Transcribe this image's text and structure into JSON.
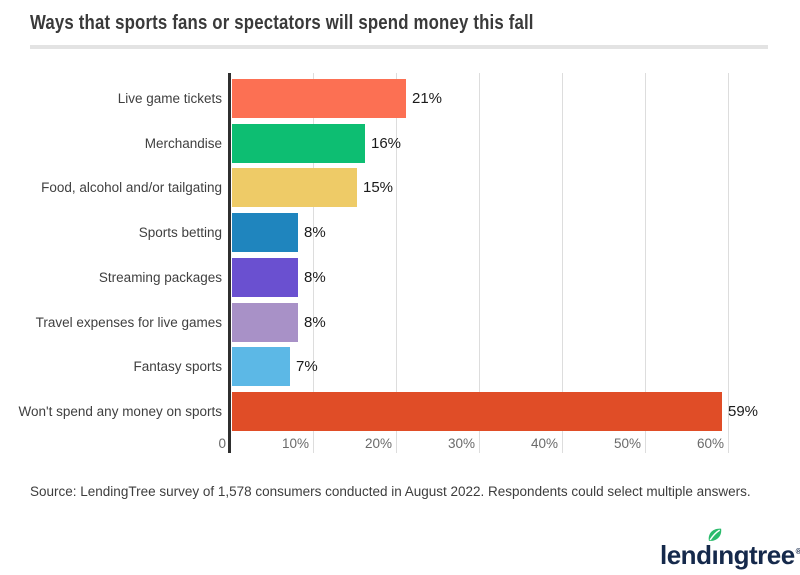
{
  "header": {
    "title": "Ways that sports fans or spectators will spend money this fall"
  },
  "chart_data": {
    "type": "bar",
    "orientation": "horizontal",
    "title": "Ways that sports fans or spectators will spend money this fall",
    "categories": [
      "Live game tickets",
      "Merchandise",
      "Food, alcohol and/or tailgating",
      "Sports betting",
      "Streaming packages",
      "Travel expenses for live games",
      "Fantasy sports",
      "Won't spend any money on sports"
    ],
    "values": [
      21,
      16,
      15,
      8,
      8,
      8,
      7,
      59
    ],
    "value_labels": [
      "21%",
      "16%",
      "15%",
      "8%",
      "8%",
      "8%",
      "7%",
      "59%"
    ],
    "bar_colors": [
      "#FC7053",
      "#0DBE72",
      "#EECB67",
      "#1F85BE",
      "#6A50D0",
      "#A891C7",
      "#5CB8E6",
      "#E04D27"
    ],
    "xlabel": "",
    "ylabel": "",
    "xlim": [
      0,
      60
    ],
    "grid": true,
    "legend_position": "none",
    "x_axis": {
      "ticks": [
        {
          "value": 0,
          "label": "0"
        },
        {
          "value": 10,
          "label": "10%"
        },
        {
          "value": 20,
          "label": "20%"
        },
        {
          "value": 30,
          "label": "30%"
        },
        {
          "value": 40,
          "label": "40%"
        },
        {
          "value": 50,
          "label": "50%"
        },
        {
          "value": 60,
          "label": "60%"
        }
      ]
    }
  },
  "footer": {
    "source_note": "Source: LendingTree survey of 1,578 consumers conducted in August 2022. Respondents could select multiple answers.",
    "logo": {
      "text": "lendingtree",
      "registered_mark": "®",
      "wordmark_color": "#15294B",
      "leaf_color": "#2BBB6C"
    }
  },
  "colors": {
    "background": "#FFFFFF",
    "title_text": "#3A3A3A",
    "divider": "#E3E3E3",
    "axis_line": "#2F2F2F",
    "gridline": "#DDDDDD",
    "tick_label": "#6A6A6A",
    "category_label": "#404040",
    "value_label": "#1B1B1B"
  }
}
